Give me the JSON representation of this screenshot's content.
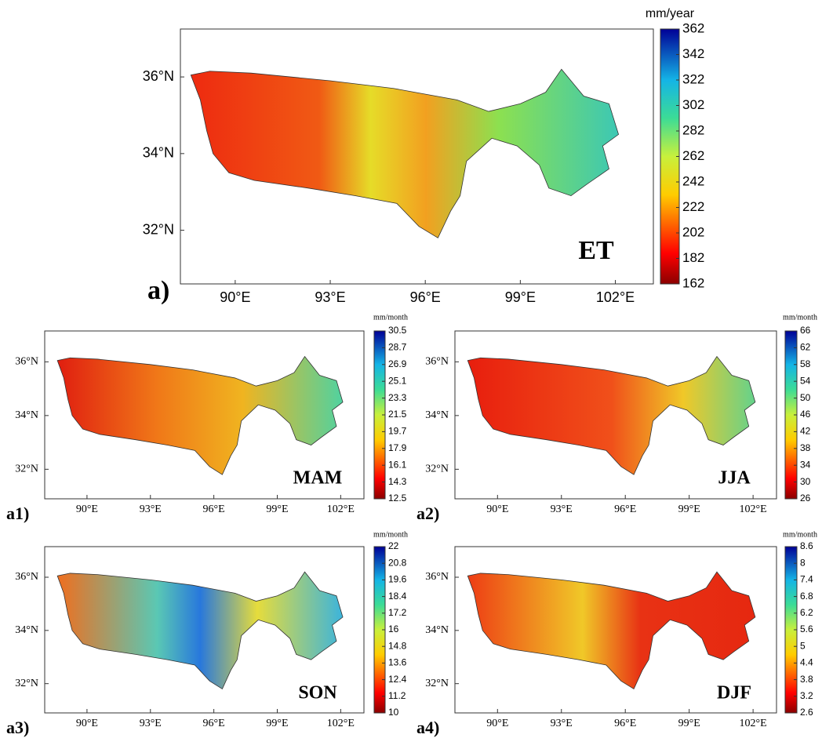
{
  "panels": [
    {
      "label": "a)",
      "title": "ET",
      "unit": "mm/year",
      "lonlim": [
        88.27,
        103.2
      ],
      "latlim": [
        30.6,
        37.25
      ],
      "lat_ticks": [
        {
          "value": 36,
          "label": "36°N"
        },
        {
          "value": 34,
          "label": "34°N"
        },
        {
          "value": 32,
          "label": "32°N"
        }
      ],
      "lon_ticks": [
        {
          "value": 90,
          "label": "90°E"
        },
        {
          "value": 93,
          "label": "93°E"
        },
        {
          "value": 96,
          "label": "96°E"
        },
        {
          "value": 99,
          "label": "99°E"
        },
        {
          "value": 102,
          "label": "102°E"
        }
      ],
      "cbar_lim": [
        162,
        362
      ],
      "cbar_ticks": [
        162,
        182,
        202,
        222,
        242,
        262,
        282,
        302,
        322,
        342,
        362
      ]
    },
    {
      "label": "a1)",
      "title": "MAM",
      "unit": "mm/month",
      "lonlim": [
        88.0,
        103.1
      ],
      "latlim": [
        30.9,
        37.15
      ],
      "lat_ticks": [
        {
          "value": 36,
          "label": "36°N"
        },
        {
          "value": 34,
          "label": "34°N"
        },
        {
          "value": 32,
          "label": "32°N"
        }
      ],
      "lon_ticks": [
        {
          "value": 90,
          "label": "90°E"
        },
        {
          "value": 93,
          "label": "93°E"
        },
        {
          "value": 96,
          "label": "96°E"
        },
        {
          "value": 99,
          "label": "99°E"
        },
        {
          "value": 102,
          "label": "102°E"
        }
      ],
      "cbar_lim": [
        12.5,
        30.5
      ],
      "cbar_ticks": [
        12.5,
        14.3,
        16.1,
        17.9,
        19.7,
        21.5,
        23.3,
        25.1,
        26.9,
        28.7,
        30.5
      ]
    },
    {
      "label": "a2)",
      "title": "JJA",
      "unit": "mm/month",
      "lonlim": [
        88.0,
        103.1
      ],
      "latlim": [
        30.9,
        37.15
      ],
      "lat_ticks": [
        {
          "value": 36,
          "label": "36°N"
        },
        {
          "value": 34,
          "label": "34°N"
        },
        {
          "value": 32,
          "label": "32°N"
        }
      ],
      "lon_ticks": [
        {
          "value": 90,
          "label": "90°E"
        },
        {
          "value": 93,
          "label": "93°E"
        },
        {
          "value": 96,
          "label": "96°E"
        },
        {
          "value": 99,
          "label": "99°E"
        },
        {
          "value": 102,
          "label": "102°E"
        }
      ],
      "cbar_lim": [
        26,
        66
      ],
      "cbar_ticks": [
        26,
        30,
        34,
        38,
        42,
        46,
        50,
        54,
        58,
        62,
        66
      ]
    },
    {
      "label": "a3)",
      "title": "SON",
      "unit": "mm/month",
      "lonlim": [
        88.0,
        103.1
      ],
      "latlim": [
        30.9,
        37.15
      ],
      "lat_ticks": [
        {
          "value": 36,
          "label": "36°N"
        },
        {
          "value": 34,
          "label": "34°N"
        },
        {
          "value": 32,
          "label": "32°N"
        }
      ],
      "lon_ticks": [
        {
          "value": 90,
          "label": "90°E"
        },
        {
          "value": 93,
          "label": "93°E"
        },
        {
          "value": 96,
          "label": "96°E"
        },
        {
          "value": 99,
          "label": "99°E"
        },
        {
          "value": 102,
          "label": "102°E"
        }
      ],
      "cbar_lim": [
        10,
        22
      ],
      "cbar_ticks": [
        10,
        11.2,
        12.4,
        13.6,
        14.8,
        16,
        17.2,
        18.4,
        19.6,
        20.8,
        22
      ]
    },
    {
      "label": "a4)",
      "title": "DJF",
      "unit": "mm/month",
      "lonlim": [
        88.0,
        103.1
      ],
      "latlim": [
        30.9,
        37.15
      ],
      "lat_ticks": [
        {
          "value": 36,
          "label": "36°N"
        },
        {
          "value": 34,
          "label": "34°N"
        },
        {
          "value": 32,
          "label": "32°N"
        }
      ],
      "lon_ticks": [
        {
          "value": 90,
          "label": "90°E"
        },
        {
          "value": 93,
          "label": "93°E"
        },
        {
          "value": 96,
          "label": "96°E"
        },
        {
          "value": 99,
          "label": "99°E"
        },
        {
          "value": 102,
          "label": "102°E"
        }
      ],
      "cbar_lim": [
        2.6,
        8.6
      ],
      "cbar_ticks": [
        2.6,
        3.2,
        3.8,
        4.4,
        5,
        5.6,
        6.2,
        6.8,
        7.4,
        8,
        8.6
      ]
    }
  ]
}
